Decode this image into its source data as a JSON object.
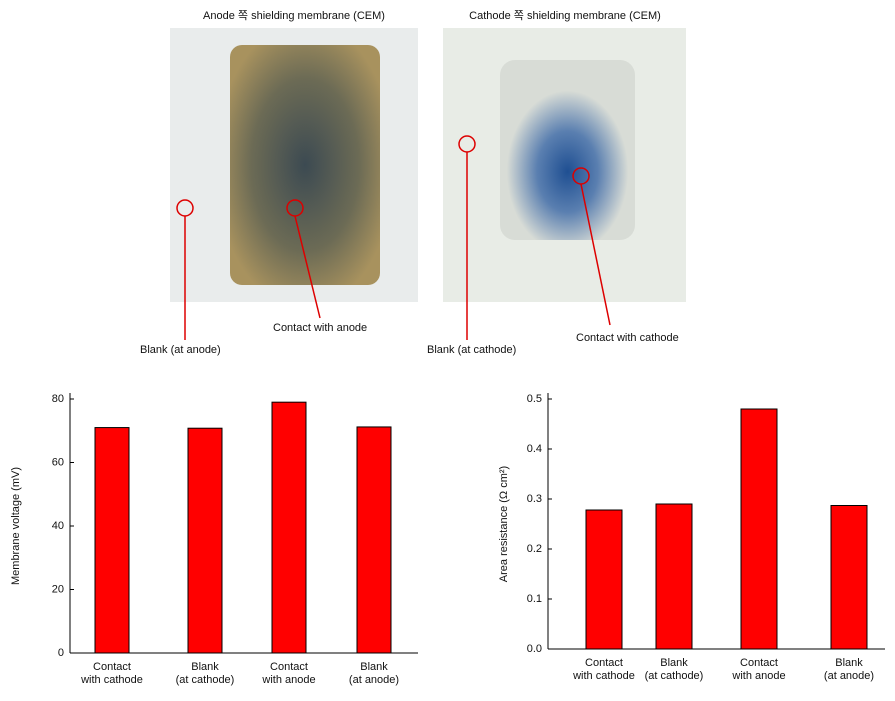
{
  "photos": [
    {
      "title": "Anode 쪽 shielding membrane (CEM)",
      "annotations": [
        "Blank (at anode)",
        "Contact with anode"
      ]
    },
    {
      "title": "Cathode 쪽 shielding membrane (CEM)",
      "annotations": [
        "Blank (at cathode)",
        "Contact with cathode"
      ]
    }
  ],
  "chart_data": [
    {
      "type": "bar",
      "y_label": "Membrane voltage (mV)",
      "categories": [
        "Contact\nwith cathode",
        "Blank\n(at cathode)",
        "Contact\nwith anode",
        "Blank\n(at anode)"
      ],
      "values": [
        71,
        70.8,
        79,
        71.2
      ],
      "color": "#ff0000",
      "ylim": [
        0,
        80
      ],
      "yticks": [
        0,
        20,
        40,
        60,
        80
      ]
    },
    {
      "type": "bar",
      "y_label": "Area resistance (Ω cm²)",
      "categories": [
        "Contact\nwith cathode",
        "Blank\n(at cathode)",
        "Contact\nwith anode",
        "Blank\n(at anode)"
      ],
      "values": [
        0.278,
        0.29,
        0.48,
        0.287
      ],
      "color": "#ff0000",
      "ylim": [
        0,
        0.5
      ],
      "yticks": [
        {
          "value": 0,
          "label": "0.0"
        },
        0.1,
        0.2,
        0.3,
        0.4,
        0.5
      ]
    }
  ]
}
